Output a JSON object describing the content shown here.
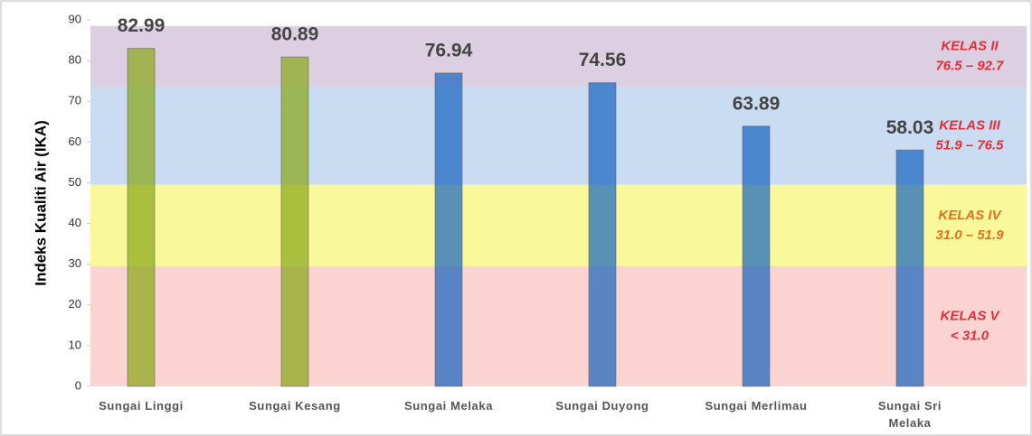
{
  "chart_data": {
    "type": "bar",
    "ylabel": "Indeks Kualiti Air (IKA)",
    "categories": [
      "Sungai Linggi",
      "Sungai Kesang",
      "Sungai Melaka",
      "Sungai Duyong",
      "Sungai Merlimau",
      "Sungai Sri\nMelaka"
    ],
    "values": [
      82.99,
      80.89,
      76.94,
      74.56,
      63.89,
      58.03
    ],
    "colors": [
      "#8aa81a",
      "#8aa81a",
      "#1a66c0",
      "#1a66c0",
      "#1a66c0",
      "#1a66c0"
    ],
    "ylim": [
      0,
      90
    ],
    "yticks": [
      0,
      10,
      20,
      30,
      40,
      50,
      60,
      70,
      80,
      90
    ],
    "bands": [
      {
        "name": "KELAS II",
        "range": "76.5 – 92.7",
        "y0": 73.5,
        "y1": 88.5,
        "color": "#dccfe2",
        "label_color": "#e0303a"
      },
      {
        "name": "KELAS III",
        "range": "51.9 – 76.5",
        "y0": 49.5,
        "y1": 73.5,
        "color": "#c9dcf1",
        "label_color": "#e0303a"
      },
      {
        "name": "KELAS IV",
        "range": "31.0 – 51.9",
        "y0": 29.5,
        "y1": 49.5,
        "color": "#f9f99c",
        "label_color": "#e8701e"
      },
      {
        "name": "KELAS V",
        "range": "< 31.0",
        "y0": 0,
        "y1": 29.5,
        "color": "#fbd4d1",
        "label_color": "#e0303a"
      }
    ]
  }
}
